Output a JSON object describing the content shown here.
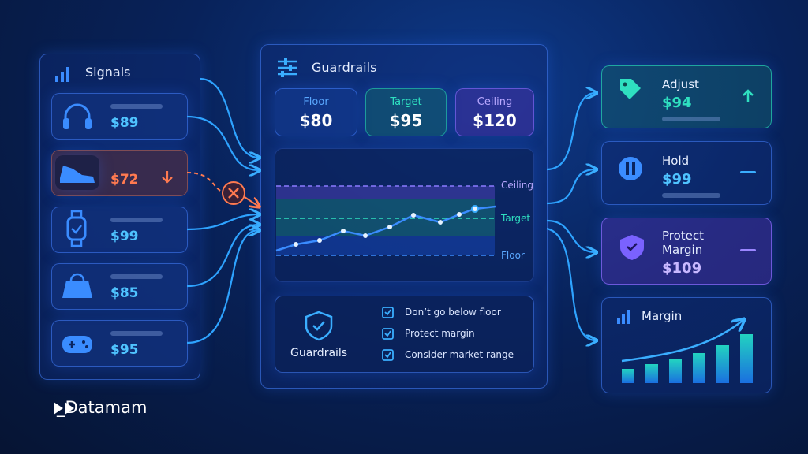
{
  "signals": {
    "title": "Signals",
    "prices": [
      "$89",
      "$72",
      "$99",
      "$85",
      "$95"
    ]
  },
  "guardrails": {
    "title": "Guardrails",
    "levels": [
      {
        "label": "Floor",
        "price": "$80"
      },
      {
        "label": "Target",
        "price": "$95"
      },
      {
        "label": "Ceiling",
        "price": "$120"
      }
    ],
    "chart_labels": [
      "Ceiling",
      "Target",
      "Floor"
    ],
    "rules_title": "Guardrails",
    "rules": [
      "Don’t go below floor",
      "Protect margin",
      "Consider market range"
    ]
  },
  "actions": [
    {
      "label": "Adjust",
      "price": "$94"
    },
    {
      "label": "Hold",
      "price": "$99"
    },
    {
      "label": "Protect Margin",
      "price": "$109"
    }
  ],
  "margin": {
    "title": "Margin"
  },
  "brand": "_Datamam"
}
